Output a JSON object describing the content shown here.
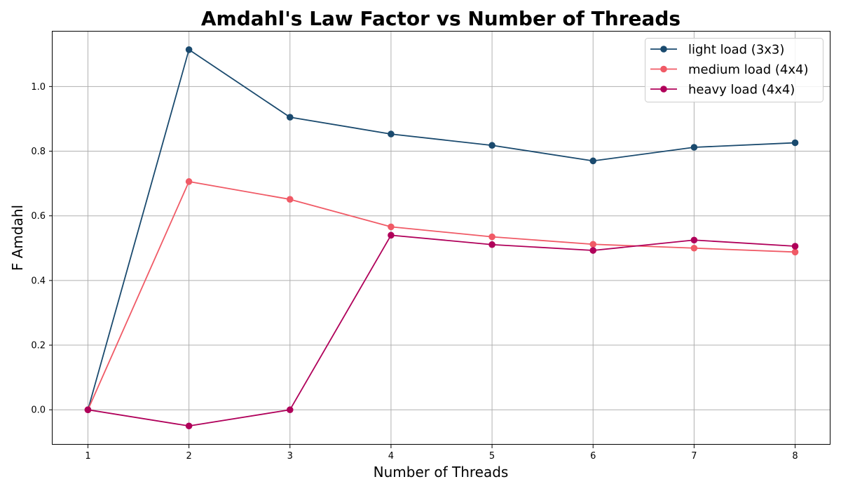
{
  "chart_data": {
    "type": "line",
    "title": "Amdahl's Law Factor vs Number of Threads",
    "xlabel": "Number of Threads",
    "ylabel": "F Amdahl",
    "x": [
      1,
      2,
      3,
      4,
      5,
      6,
      7,
      8
    ],
    "xlim": [
      0.65,
      8.35
    ],
    "ylim": [
      -0.108,
      1.17
    ],
    "xticks": [
      "1",
      "2",
      "3",
      "4",
      "5",
      "6",
      "7",
      "8"
    ],
    "yticks": [
      "0.0",
      "0.2",
      "0.4",
      "0.6",
      "0.8",
      "1.0"
    ],
    "grid": true,
    "legend_position": "top-right",
    "series": [
      {
        "name": "light load (3x3)",
        "color": "#1a4a6e",
        "values": [
          0.0,
          1.114,
          0.905,
          0.853,
          0.818,
          0.77,
          0.812,
          0.826
        ]
      },
      {
        "name": "medium load (4x4)",
        "color": "#f05a66",
        "values": [
          0.0,
          0.706,
          0.651,
          0.566,
          0.535,
          0.512,
          0.5,
          0.488
        ]
      },
      {
        "name": "heavy load (4x4)",
        "color": "#b0005a",
        "values": [
          0.0,
          -0.05,
          0.0,
          0.54,
          0.511,
          0.493,
          0.525,
          0.506
        ]
      }
    ]
  }
}
